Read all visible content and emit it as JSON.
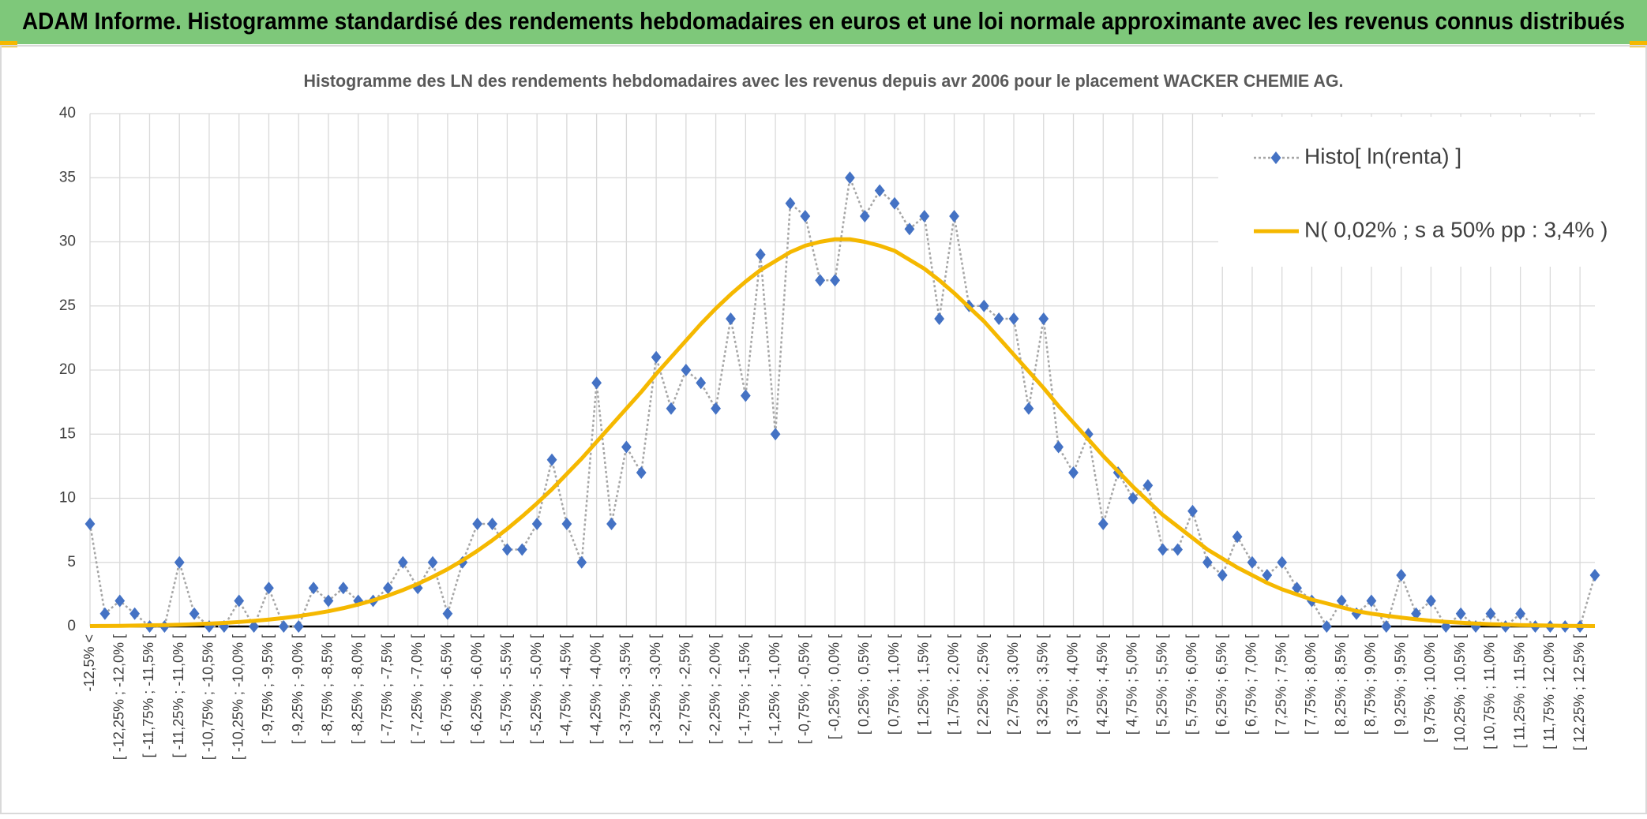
{
  "header": {
    "title": "ADAM Informe. Histogramme standardisé des rendements hebdomadaires en euros et une loi normale approximante avec les revenus connus distribués"
  },
  "chart_data": {
    "type": "line",
    "title": "Histogramme des LN des rendements hebdomadaires avec les revenus depuis avr 2006 pour le placement WACKER CHEMIE AG.",
    "categories": [
      "-12,5% <",
      null,
      "[ -12,25% ; -12,0% [",
      null,
      "[ -11,75% ; -11,5% [",
      null,
      "[ -11,25% ; -11,0% [",
      null,
      "[ -10,75% ; -10,5% [",
      null,
      "[ -10,25% ; -10,0% [",
      null,
      "[ -9,75% ; -9,5% [",
      null,
      "[ -9,25% ; -9,0% [",
      null,
      "[ -8,75% ; -8,5% [",
      null,
      "[ -8,25% ; -8,0% [",
      null,
      "[ -7,75% ; -7,5% [",
      null,
      "[ -7,25% ; -7,0% [",
      null,
      "[ -6,75% ; -6,5% [",
      null,
      "[ -6,25% ; -6,0% [",
      null,
      "[ -5,75% ; -5,5% [",
      null,
      "[ -5,25% ; -5,0% [",
      null,
      "[ -4,75% ; -4,5% [",
      null,
      "[ -4,25% ; -4,0% [",
      null,
      "[ -3,75% ; -3,5% [",
      null,
      "[ -3,25% ; -3,0% [",
      null,
      "[ -2,75% ; -2,5% [",
      null,
      "[ -2,25% ; -2,0% [",
      null,
      "[ -1,75% ; -1,5% [",
      null,
      "[ -1,25% ; -1,0% [",
      null,
      "[ -0,75% ; -0,5% [",
      null,
      "[ -0,25% ; 0,0% [",
      null,
      "[ 0,25% ; 0,5% [",
      null,
      "[ 0,75% ; 1,0% [",
      null,
      "[ 1,25% ; 1,5% [",
      null,
      "[ 1,75% ; 2,0% [",
      null,
      "[ 2,25% ; 2,5% [",
      null,
      "[ 2,75% ; 3,0% [",
      null,
      "[ 3,25% ; 3,5% [",
      null,
      "[ 3,75% ; 4,0% [",
      null,
      "[ 4,25% ; 4,5% [",
      null,
      "[ 4,75% ; 5,0% [",
      null,
      "[ 5,25% ; 5,5% [",
      null,
      "[ 5,75% ; 6,0% [",
      null,
      "[ 6,25% ; 6,5% [",
      null,
      "[ 6,75% ; 7,0% [",
      null,
      "[ 7,25% ; 7,5% [",
      null,
      "[ 7,75% ; 8,0% [",
      null,
      "[ 8,25% ; 8,5% [",
      null,
      "[ 8,75% ; 9,0% [",
      null,
      "[ 9,25% ; 9,5% [",
      null,
      "[ 9,75% ; 10,0% [",
      null,
      "[ 10,25% ; 10,5% [",
      null,
      "[ 10,75% ; 11,0% [",
      null,
      "[ 11,25% ; 11,5% [",
      null,
      "[ 11,75% ; 12,0% [",
      null,
      "[ 12,25% ; 12,5% [",
      null
    ],
    "series": [
      {
        "name": "Histo[ ln(renta) ]",
        "color": "#4472c4",
        "line_color": "#a6a6a6",
        "values": [
          8,
          1,
          2,
          1,
          0,
          0,
          5,
          1,
          0,
          0,
          2,
          0,
          3,
          0,
          0,
          3,
          2,
          3,
          2,
          2,
          3,
          5,
          3,
          5,
          1,
          5,
          8,
          8,
          6,
          6,
          8,
          13,
          8,
          5,
          19,
          8,
          14,
          12,
          21,
          17,
          20,
          19,
          17,
          24,
          18,
          29,
          15,
          33,
          32,
          27,
          27,
          35,
          32,
          34,
          33,
          31,
          32,
          24,
          32,
          25,
          25,
          24,
          24,
          17,
          24,
          14,
          12,
          15,
          8,
          12,
          10,
          11,
          6,
          6,
          9,
          5,
          4,
          7,
          5,
          4,
          5,
          3,
          2,
          0,
          2,
          1,
          2,
          0,
          4,
          1,
          2,
          0,
          1,
          0,
          1,
          0,
          1,
          0,
          0,
          0,
          0,
          4
        ]
      },
      {
        "name": "N( 0,02% ; s a 50% pp : 3,4% )",
        "color": "#f5b800",
        "values": [
          0.03,
          0.04,
          0.05,
          0.07,
          0.09,
          0.11,
          0.14,
          0.18,
          0.22,
          0.28,
          0.35,
          0.44,
          0.54,
          0.66,
          0.81,
          0.99,
          1.19,
          1.43,
          1.71,
          2.04,
          2.41,
          2.84,
          3.32,
          3.87,
          4.47,
          5.15,
          5.9,
          6.72,
          7.61,
          8.58,
          9.61,
          10.7,
          11.9,
          13.1,
          14.4,
          15.7,
          17.0,
          18.3,
          19.7,
          21.0,
          22.3,
          23.6,
          24.8,
          25.9,
          26.9,
          27.8,
          28.5,
          29.2,
          29.7,
          30.0,
          30.2,
          30.2,
          30.0,
          29.7,
          29.3,
          28.6,
          27.9,
          27.0,
          26.0,
          24.9,
          23.8,
          22.5,
          21.2,
          19.9,
          18.6,
          17.2,
          15.9,
          14.6,
          13.3,
          12.1,
          10.9,
          9.8,
          8.7,
          7.8,
          6.9,
          6.0,
          5.3,
          4.6,
          4.0,
          3.4,
          2.9,
          2.5,
          2.1,
          1.8,
          1.5,
          1.2,
          1.0,
          0.84,
          0.69,
          0.56,
          0.45,
          0.36,
          0.29,
          0.23,
          0.18,
          0.15,
          0.11,
          0.09,
          0.07,
          0.05,
          0.04,
          0.03
        ]
      }
    ],
    "ylim": [
      0,
      40
    ],
    "yticks": [
      0,
      5,
      10,
      15,
      20,
      25,
      30,
      35,
      40
    ],
    "grid": true,
    "legend": "upper right"
  }
}
